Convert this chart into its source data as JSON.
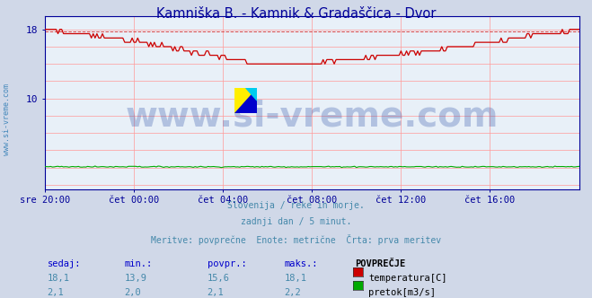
{
  "title": "Kamniška B. - Kamnik & Gradaščica - Dvor",
  "title_color": "#000099",
  "bg_color": "#d0d8e8",
  "plot_bg_color": "#e8f0f8",
  "grid_color": "#ff9999",
  "tick_color": "#000099",
  "text_color": "#4488aa",
  "subtitle_lines": [
    "Slovenija / reke in morje.",
    "zadnji dan / 5 minut.",
    "Meritve: povprečne  Enote: metrične  Črta: prva meritev"
  ],
  "xtick_labels": [
    "sre 20:00",
    "čet 00:00",
    "čet 04:00",
    "čet 08:00",
    "čet 12:00",
    "čet 16:00"
  ],
  "ytick_labels": [
    "18",
    "10"
  ],
  "ytick_vals": [
    18,
    10
  ],
  "xtick_positions_norm": [
    0.0,
    0.1667,
    0.3333,
    0.5,
    0.6667,
    0.8333
  ],
  "ylim": [
    -0.5,
    19.5
  ],
  "xlim": [
    0,
    1.0
  ],
  "temp_color": "#cc0000",
  "pretok_color": "#00aa00",
  "avg_line_color": "#dd4444",
  "avg_line_val": 17.8,
  "watermark_text": "www.si-vreme.com",
  "watermark_color": "#3355aa",
  "watermark_alpha": 0.3,
  "watermark_fontsize": 28,
  "sidevreme_text": "www.si-vreme.com",
  "sidevreme_color": "#4488bb",
  "table_header": [
    "sedaj:",
    "min.:",
    "povpr.:",
    "maks.:",
    "POVPREČJE"
  ],
  "table_col_color": "#0000cc",
  "table_val_color": "#4488aa",
  "table_data": [
    [
      "18,1",
      "13,9",
      "15,6",
      "18,1"
    ],
    [
      "2,1",
      "2,0",
      "2,1",
      "2,2"
    ]
  ],
  "legend_labels": [
    "temperatura[C]",
    "pretok[m3/s]"
  ],
  "legend_colors": [
    "#cc0000",
    "#00aa00"
  ],
  "border_color": "#000099"
}
